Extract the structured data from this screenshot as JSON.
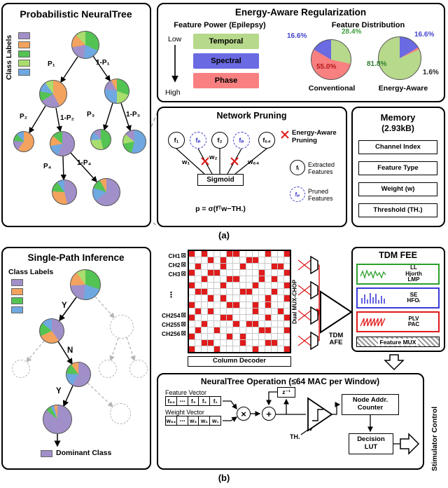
{
  "colors": {
    "purple": "#a18fc9",
    "orange": "#f3a35e",
    "green": "#53c353",
    "lightgreen": "#a9dd6e",
    "blue": "#6fa8e0",
    "temporal": "#b7d98b",
    "spectral": "#6a6ae2",
    "phase": "#f88080",
    "red": "#e01b1b"
  },
  "chart_data": [
    {
      "type": "pie",
      "title": "Conventional",
      "labels": [
        "Spectral",
        "Temporal",
        "Phase"
      ],
      "values": [
        16.6,
        28.4,
        55.0
      ]
    },
    {
      "type": "pie",
      "title": "Energy-Aware",
      "labels": [
        "Temporal",
        "Spectral",
        "Phase"
      ],
      "values": [
        81.8,
        16.6,
        1.6
      ]
    }
  ],
  "panel_a": {
    "label": "(a)",
    "tree": {
      "title": "Probabilistic NeuralTree",
      "legend_title": "Class Labels",
      "class_colors": [
        "purple",
        "orange",
        "green",
        "lightgreen",
        "blue"
      ],
      "edge_labels": [
        "P₁",
        "1-P₁",
        "P₂",
        "1-P₂",
        "P₃",
        "1-P₃",
        "P₄",
        "1-P₄"
      ],
      "pies": {
        "root": [
          [
            "green",
            32
          ],
          [
            "blue",
            20
          ],
          [
            "purple",
            20
          ],
          [
            "orange",
            16
          ],
          [
            "lightgreen",
            12
          ]
        ],
        "l2l": [
          [
            "orange",
            42
          ],
          [
            "purple",
            24
          ],
          [
            "green",
            12
          ],
          [
            "blue",
            12
          ],
          [
            "lightgreen",
            10
          ]
        ],
        "l2r": [
          [
            "green",
            30
          ],
          [
            "lightgreen",
            20
          ],
          [
            "blue",
            28
          ],
          [
            "purple",
            14
          ],
          [
            "orange",
            8
          ]
        ],
        "l3a": [
          [
            "orange",
            60
          ],
          [
            "purple",
            16
          ],
          [
            "green",
            12
          ],
          [
            "blue",
            12
          ]
        ],
        "l3b": [
          [
            "purple",
            56
          ],
          [
            "blue",
            16
          ],
          [
            "orange",
            14
          ],
          [
            "green",
            14
          ]
        ],
        "l3c": [
          [
            "green",
            46
          ],
          [
            "lightgreen",
            28
          ],
          [
            "blue",
            14
          ],
          [
            "purple",
            12
          ]
        ],
        "l3d": [
          [
            "blue",
            54
          ],
          [
            "green",
            18
          ],
          [
            "lightgreen",
            14
          ],
          [
            "purple",
            14
          ]
        ],
        "leaf1": [
          [
            "purple",
            46
          ],
          [
            "orange",
            30
          ],
          [
            "green",
            14
          ],
          [
            "blue",
            10
          ]
        ],
        "leaf2": [
          [
            "purple",
            64
          ],
          [
            "blue",
            16
          ],
          [
            "green",
            12
          ],
          [
            "orange",
            8
          ]
        ]
      }
    },
    "energy": {
      "title": "Energy-Aware Regularization",
      "power_title": "Feature Power (Epilepsy)",
      "axis_low": "Low",
      "axis_high": "High",
      "bands": [
        {
          "label": "Temporal"
        },
        {
          "label": "Spectral"
        },
        {
          "label": "Phase"
        }
      ],
      "dist_title": "Feature Distribution",
      "conventional": {
        "caption": "Conventional",
        "slices": [
          [
            "temporal",
            28.4
          ],
          [
            "phase",
            55.0
          ],
          [
            "spectral",
            16.6
          ]
        ],
        "labels": {
          "spectral": "16.6%",
          "temporal": "28.4%",
          "phase": "55.0%"
        }
      },
      "energy_aware": {
        "caption": "Energy-Aware",
        "slices": [
          [
            "spectral",
            16.6
          ],
          [
            "phase",
            1.6
          ],
          [
            "temporal",
            81.8
          ]
        ],
        "labels": {
          "temporal": "81.8%",
          "spectral": "16.6%",
          "phase": "1.6%"
        }
      }
    },
    "pruning": {
      "title": "Network Pruning",
      "nodes": [
        "f₁",
        "fₚ",
        "f₂",
        "fₚ",
        "f₆₄"
      ],
      "weights": [
        "w₁",
        "w₂",
        "w₆₄"
      ],
      "prune_label_1": "Energy-Aware",
      "prune_label_2": "Pruning",
      "sigmoid": "Sigmoid",
      "equation": "p = σ(fᵀw−TH.)",
      "legend": [
        {
          "symbol": "fᵢ",
          "line1": "Extracted",
          "line2": "Features"
        },
        {
          "symbol": "fₚ",
          "line1": "Pruned",
          "line2": "Features"
        }
      ]
    },
    "memory": {
      "title1": "Memory",
      "title2": "(2.93kB)",
      "items": [
        "Channel Index",
        "Feature Type",
        "Weight (w)",
        "Threshold (TH.)"
      ]
    }
  },
  "panel_b": {
    "label": "(b)",
    "inference": {
      "title": "Single-Path Inference",
      "legend_title": "Class Labels",
      "class_colors": [
        "purple",
        "orange",
        "green",
        "blue"
      ],
      "branch_labels": [
        "Y",
        "N",
        "Y"
      ],
      "dominant_label": "Dominant Class",
      "pies": {
        "root": [
          [
            "green",
            30
          ],
          [
            "blue",
            22
          ],
          [
            "purple",
            22
          ],
          [
            "orange",
            16
          ],
          [
            "lightgreen",
            10
          ]
        ],
        "n2": [
          [
            "purple",
            40
          ],
          [
            "orange",
            28
          ],
          [
            "green",
            18
          ],
          [
            "blue",
            14
          ]
        ],
        "n3": [
          [
            "purple",
            58
          ],
          [
            "blue",
            18
          ],
          [
            "green",
            14
          ],
          [
            "orange",
            10
          ]
        ],
        "n4": [
          [
            "purple",
            86
          ],
          [
            "green",
            6
          ],
          [
            "blue",
            4
          ],
          [
            "orange",
            4
          ]
        ]
      }
    },
    "frontend": {
      "channels": [
        "CH1",
        "CH2",
        "CH3",
        "⋮",
        "CH254",
        "CH255",
        "CH256"
      ],
      "electrode": "⊠",
      "matrix_rows": [
        "R.R...RR....R..R",
        "...R.R...RR.....",
        ".R...R..R....RR.",
        "R..RR......R...R",
        "..R...RR...R.R..",
        "R....R....R....R",
        ".RR.....RR...R..",
        "...R.R......R..R",
        "R.....RR..R.R...",
        ".R.R......R...R.",
        "R....RR.....R..R",
        "..R....R.RR.....",
        ".R..R......RR..R",
        "R.....R.R.......",
        "..RR....R...RR..",
        "R...R.....R....R"
      ],
      "column_decoder": "Column Decoder",
      "mux_label": "Dual MUX-CHOP",
      "afe1": "TDM",
      "afe2": "AFE"
    },
    "fee": {
      "title": "TDM FEE",
      "f1": {
        "l1": "LL",
        "l2": "Hjorth",
        "l3": "LMP"
      },
      "f2": {
        "l1": "SE",
        "l2": "HFOᵣ"
      },
      "f3": {
        "l1": "PLV",
        "l2": "PAC"
      },
      "mux": "Feature MUX"
    },
    "operation": {
      "title": "NeuralTree Operation (≤64 MAC per Window)",
      "fv_label": "Feature Vector",
      "fv_cells": [
        "f₆₄",
        "⋯",
        "f₃",
        "f₂",
        "f₁"
      ],
      "wv_label": "Weight Vector",
      "wv_cells": [
        "w₆₄",
        "⋯",
        "w₃",
        "w₂",
        "w₁"
      ],
      "mul": "×",
      "add": "+",
      "delay": "z⁻¹",
      "th": "TH.",
      "node1": "Node Addr.",
      "node2": "Counter",
      "lut1": "Decision",
      "lut2": "LUT",
      "stim": "Stimulator Control"
    }
  }
}
